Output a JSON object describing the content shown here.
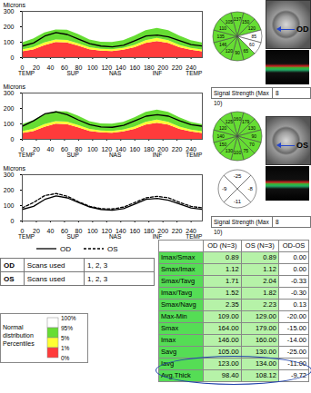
{
  "chart_data": [
    {
      "type": "line",
      "y_label": "Microns",
      "x": [
        0,
        16,
        32,
        48,
        64,
        80,
        96,
        112,
        128,
        144,
        160,
        176,
        192,
        208,
        224,
        240,
        256
      ],
      "series": [
        {
          "color": "#000000",
          "line_style": "solid",
          "values": [
            75,
            95,
            140,
            162,
            150,
            120,
            90,
            75,
            70,
            80,
            110,
            140,
            146,
            135,
            110,
            85,
            75
          ]
        }
      ],
      "normal_bands": {
        "p1": [
          38,
          50,
          78,
          98,
          95,
          75,
          52,
          42,
          40,
          48,
          65,
          92,
          105,
          92,
          65,
          48,
          38
        ],
        "p5": [
          50,
          65,
          95,
          115,
          112,
          90,
          65,
          55,
          52,
          60,
          80,
          110,
          125,
          110,
          80,
          60,
          50
        ],
        "p95": [
          95,
          120,
          160,
          180,
          178,
          150,
          115,
          100,
          98,
          110,
          140,
          175,
          190,
          175,
          140,
          110,
          95
        ]
      },
      "x_regions": [
        {
          "value": 6,
          "label": "TEMP"
        },
        {
          "value": 72,
          "label": "SUP"
        },
        {
          "value": 132,
          "label": "NAS"
        },
        {
          "value": 192,
          "label": "INF"
        },
        {
          "value": 244,
          "label": "TEMP"
        }
      ],
      "xlim": [
        0,
        256
      ],
      "xticks": [
        0,
        20,
        40,
        60,
        80,
        100,
        120,
        140,
        160,
        180,
        200,
        220,
        240
      ],
      "ylim": [
        0,
        300
      ],
      "yticks": [
        0,
        100,
        200,
        300
      ]
    },
    {
      "type": "line",
      "y_label": "Microns",
      "x": [
        0,
        16,
        32,
        48,
        64,
        80,
        96,
        112,
        128,
        144,
        160,
        176,
        192,
        208,
        224,
        240,
        256
      ],
      "series": [
        {
          "color": "#000000",
          "line_style": "solid",
          "values": [
            85,
            120,
            165,
            178,
            160,
            125,
            95,
            80,
            78,
            90,
            120,
            150,
            160,
            150,
            120,
            95,
            85
          ]
        }
      ],
      "normal_bands": {
        "p1": [
          38,
          50,
          78,
          98,
          95,
          75,
          52,
          42,
          40,
          48,
          65,
          92,
          105,
          92,
          65,
          48,
          38
        ],
        "p5": [
          50,
          65,
          95,
          115,
          112,
          90,
          65,
          55,
          52,
          60,
          80,
          110,
          125,
          110,
          80,
          60,
          50
        ],
        "p95": [
          95,
          120,
          160,
          180,
          178,
          150,
          115,
          100,
          98,
          110,
          140,
          175,
          190,
          175,
          140,
          110,
          95
        ]
      },
      "x_regions": [
        {
          "value": 6,
          "label": "TEMP"
        },
        {
          "value": 72,
          "label": "SUP"
        },
        {
          "value": 132,
          "label": "NAS"
        },
        {
          "value": 192,
          "label": "INF"
        },
        {
          "value": 244,
          "label": "TEMP"
        }
      ],
      "xlim": [
        0,
        256
      ],
      "xticks": [
        0,
        20,
        40,
        60,
        80,
        100,
        120,
        140,
        160,
        180,
        200,
        220,
        240
      ],
      "ylim": [
        0,
        300
      ],
      "yticks": [
        0,
        100,
        200,
        300
      ]
    },
    {
      "type": "line",
      "y_label": "Microns",
      "x": [
        0,
        16,
        32,
        48,
        64,
        80,
        96,
        112,
        128,
        144,
        160,
        176,
        192,
        208,
        224,
        240,
        256
      ],
      "series": [
        {
          "name": "OD",
          "color": "#000000",
          "line_style": "solid",
          "values": [
            75,
            95,
            140,
            162,
            150,
            120,
            90,
            75,
            70,
            80,
            110,
            140,
            146,
            135,
            110,
            85,
            75
          ]
        },
        {
          "name": "OS",
          "color": "#000000",
          "line_style": "dashed",
          "values": [
            85,
            120,
            165,
            178,
            160,
            125,
            95,
            80,
            78,
            90,
            120,
            150,
            160,
            150,
            120,
            95,
            85
          ]
        }
      ],
      "x_regions": [
        {
          "value": 6,
          "label": "TEMP"
        },
        {
          "value": 72,
          "label": "SUP"
        },
        {
          "value": 132,
          "label": "NAS"
        },
        {
          "value": 192,
          "label": "INF"
        },
        {
          "value": 244,
          "label": "TEMP"
        }
      ],
      "xlim": [
        0,
        256
      ],
      "xticks": [
        0,
        20,
        40,
        60,
        80,
        100,
        120,
        140,
        160,
        180,
        200,
        220,
        240
      ],
      "ylim": [
        0,
        300
      ],
      "yticks": [
        0,
        100,
        200,
        300
      ]
    }
  ],
  "band_colors": [
    "#ff3b3b",
    "#ffff33",
    "#66dd33"
  ],
  "sector_diagrams": [
    {
      "values": [
        137,
        150,
        120,
        85,
        60,
        65,
        90,
        120,
        146,
        135,
        110,
        105
      ],
      "colors": [
        "#66dd33",
        "#66dd33",
        "#66dd33",
        "#ffffff",
        "#ffffff",
        "#66dd33",
        "#66dd33",
        "#66dd33",
        "#66dd33",
        "#66dd33",
        "#66dd33",
        "#66dd33"
      ]
    },
    {
      "values": [
        160,
        179,
        130,
        90,
        70,
        75,
        100,
        130,
        150,
        140,
        120,
        125
      ],
      "colors": [
        "#66dd33",
        "#66dd33",
        "#66dd33",
        "#66dd33",
        "#66dd33",
        "#66dd33",
        "#66dd33",
        "#66dd33",
        "#66dd33",
        "#66dd33",
        "#66dd33",
        "#66dd33"
      ]
    },
    {
      "values": [
        -25,
        -8,
        -11,
        -9
      ],
      "colors": [
        "#ffffff",
        "#ffffff",
        "#ffffff",
        "#ffffff"
      ]
    }
  ],
  "eye_labels": [
    "OD",
    "OS"
  ],
  "signal_strength": [
    {
      "label": "Signal Strength (Max 10)",
      "value": 8
    },
    {
      "label": "Signal Strength (Max 10)",
      "value": 8
    }
  ],
  "scans_table": [
    [
      "OD",
      "Scans used",
      "1, 2, 3"
    ],
    [
      "OS",
      "Scans used",
      "1, 2, 3"
    ]
  ],
  "percentile_legend": {
    "title_lines": [
      "Normal",
      "distribution",
      "Percentiles"
    ],
    "labels": [
      "100%",
      "95%",
      "5%",
      "1%",
      "0%"
    ],
    "colors": [
      "#ffffff",
      "#66dd33",
      "#ffff33",
      "#ff3b3b"
    ]
  },
  "table": {
    "header": [
      "OD (N=3)",
      "OS (N=3)",
      "OD-OS"
    ],
    "rows": [
      [
        "Imax/Smax",
        "0.89",
        "0.89",
        "0.00"
      ],
      [
        "Smax/Imax",
        "1.12",
        "1.12",
        "0.00"
      ],
      [
        "Smax/Tavg",
        "1.71",
        "2.04",
        "-0.33"
      ],
      [
        "Imax/Tavg",
        "1.52",
        "1.82",
        "-0.30"
      ],
      [
        "Smax/Navg",
        "2.35",
        "2.23",
        "0.13"
      ],
      [
        "Max-Min",
        "109.00",
        "129.00",
        "-20.00"
      ],
      [
        "Smax",
        "164.00",
        "179.00",
        "-15.00"
      ],
      [
        "Imax",
        "146.00",
        "160.00",
        "-14.00"
      ],
      [
        "Savg",
        "105.00",
        "130.00",
        "-25.00"
      ],
      [
        "Iavg",
        "123.00",
        "134.00",
        "-11.00"
      ],
      [
        "Avg.Thick",
        "98.40",
        "108.12",
        "-9.72"
      ]
    ]
  }
}
